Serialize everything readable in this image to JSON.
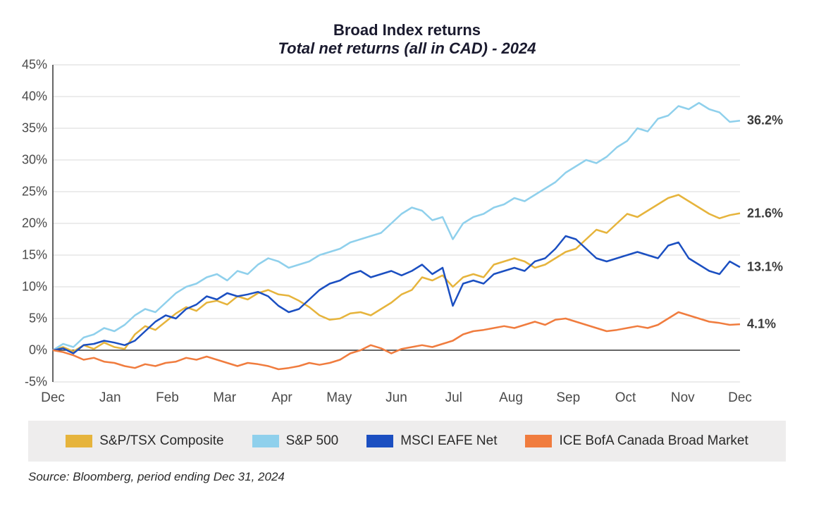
{
  "title": {
    "main": "Broad Index returns",
    "sub": "Total net returns (all in CAD) - 2024",
    "fontsize": 22,
    "color": "#1a1a2e"
  },
  "chart": {
    "type": "line",
    "background_color": "#ffffff",
    "grid_color": "#d9d9d9",
    "axis_color": "#333333",
    "ylim": [
      -5,
      45
    ],
    "yticks": [
      -5,
      0,
      5,
      10,
      15,
      20,
      25,
      30,
      35,
      40,
      45
    ],
    "ytick_suffix": "%",
    "xlabels": [
      "Dec",
      "Jan",
      "Feb",
      "Mar",
      "Apr",
      "May",
      "Jun",
      "Jul",
      "Aug",
      "Sep",
      "Oct",
      "Nov",
      "Dec"
    ],
    "line_width": 2.5,
    "label_fontsize": 18,
    "label_color": "#4a4a4a",
    "series": [
      {
        "name": "S&P/TSX Composite",
        "color": "#e6b43c",
        "end_label": "21.6%",
        "values": [
          0,
          0.5,
          -0.2,
          0.8,
          0.2,
          1.2,
          0.5,
          0.2,
          2.5,
          3.8,
          3.2,
          4.5,
          5.8,
          6.8,
          6.2,
          7.5,
          7.8,
          7.2,
          8.5,
          8.0,
          9.0,
          9.5,
          8.8,
          8.6,
          7.8,
          6.8,
          5.5,
          4.8,
          5.0,
          5.8,
          6.0,
          5.5,
          6.5,
          7.5,
          8.8,
          9.5,
          11.5,
          11.0,
          11.8,
          10.0,
          11.5,
          12.0,
          11.5,
          13.5,
          14.0,
          14.5,
          14.0,
          13.0,
          13.5,
          14.5,
          15.5,
          16.0,
          17.5,
          19.0,
          18.5,
          20.0,
          21.5,
          21.0,
          22.0,
          23.0,
          24.0,
          24.5,
          23.5,
          22.5,
          21.5,
          20.8,
          21.3,
          21.6
        ]
      },
      {
        "name": "S&P 500",
        "color": "#8fd0ec",
        "end_label": "36.2%",
        "values": [
          0,
          1.0,
          0.5,
          2.0,
          2.5,
          3.5,
          3.0,
          4.0,
          5.5,
          6.5,
          6.0,
          7.5,
          9.0,
          10.0,
          10.5,
          11.5,
          12.0,
          11.0,
          12.5,
          12.0,
          13.5,
          14.5,
          14.0,
          13.0,
          13.5,
          14.0,
          15.0,
          15.5,
          16.0,
          17.0,
          17.5,
          18.0,
          18.5,
          20.0,
          21.5,
          22.5,
          22.0,
          20.5,
          21.0,
          17.5,
          20.0,
          21.0,
          21.5,
          22.5,
          23.0,
          24.0,
          23.5,
          24.5,
          25.5,
          26.5,
          28.0,
          29.0,
          30.0,
          29.5,
          30.5,
          32.0,
          33.0,
          35.0,
          34.5,
          36.5,
          37.0,
          38.5,
          38.0,
          39.0,
          38.0,
          37.5,
          36.0,
          36.2
        ]
      },
      {
        "name": "MSCI EAFE Net",
        "color": "#1b4fc1",
        "end_label": "13.1%",
        "values": [
          0,
          0.3,
          -0.5,
          0.8,
          1.0,
          1.5,
          1.2,
          0.8,
          1.5,
          3.0,
          4.5,
          5.5,
          5.0,
          6.5,
          7.2,
          8.5,
          8.0,
          9.0,
          8.5,
          8.8,
          9.2,
          8.5,
          7.0,
          6.0,
          6.5,
          8.0,
          9.5,
          10.5,
          11.0,
          12.0,
          12.5,
          11.5,
          12.0,
          12.5,
          11.8,
          12.5,
          13.5,
          12.0,
          13.0,
          7.0,
          10.5,
          11.0,
          10.5,
          12.0,
          12.5,
          13.0,
          12.5,
          14.0,
          14.5,
          16.0,
          18.0,
          17.5,
          16.0,
          14.5,
          14.0,
          14.5,
          15.0,
          15.5,
          15.0,
          14.5,
          16.5,
          17.0,
          14.5,
          13.5,
          12.5,
          12.0,
          14.0,
          13.1
        ]
      },
      {
        "name": "ICE BofA Canada Broad Market",
        "color": "#f07c3e",
        "end_label": "4.1%",
        "values": [
          0,
          -0.3,
          -0.8,
          -1.5,
          -1.2,
          -1.8,
          -2.0,
          -2.5,
          -2.8,
          -2.2,
          -2.5,
          -2.0,
          -1.8,
          -1.2,
          -1.5,
          -1.0,
          -1.5,
          -2.0,
          -2.5,
          -2.0,
          -2.2,
          -2.5,
          -3.0,
          -2.8,
          -2.5,
          -2.0,
          -2.3,
          -2.0,
          -1.5,
          -0.5,
          0.0,
          0.8,
          0.3,
          -0.5,
          0.2,
          0.5,
          0.8,
          0.5,
          1.0,
          1.5,
          2.5,
          3.0,
          3.2,
          3.5,
          3.8,
          3.5,
          4.0,
          4.5,
          4.0,
          4.8,
          5.0,
          4.5,
          4.0,
          3.5,
          3.0,
          3.2,
          3.5,
          3.8,
          3.5,
          4.0,
          5.0,
          6.0,
          5.5,
          5.0,
          4.5,
          4.3,
          4.0,
          4.1
        ]
      }
    ]
  },
  "legend": {
    "background_color": "#eeeded",
    "fontsize": 19,
    "swatch_width": 38,
    "swatch_height": 18
  },
  "source": "Source: Bloomberg, period ending Dec 31, 2024"
}
